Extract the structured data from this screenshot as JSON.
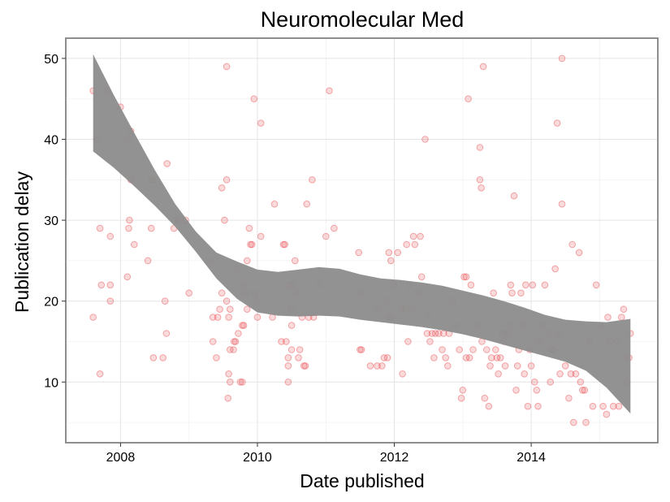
{
  "chart_data": {
    "type": "scatter",
    "title": "Neuromolecular Med",
    "xlabel": "Date published",
    "ylabel": "Publication delay",
    "xlim": [
      2007.2,
      2015.85
    ],
    "ylim": [
      2.5,
      52.5
    ],
    "x_ticks": [
      2008,
      2010,
      2012,
      2014
    ],
    "x_tick_labels": [
      "2008",
      "2010",
      "2012",
      "2014"
    ],
    "y_ticks": [
      10,
      20,
      30,
      40,
      50
    ],
    "y_tick_labels": [
      "10",
      "20",
      "30",
      "40",
      "50"
    ],
    "grid": true,
    "legend": "none",
    "point_color": "#e8474c",
    "band_color": "#8c8c8c",
    "points": [
      [
        2007.6,
        46
      ],
      [
        2007.8,
        46
      ],
      [
        2007.65,
        40
      ],
      [
        2008.0,
        44
      ],
      [
        2008.1,
        40
      ],
      [
        2008.15,
        41
      ],
      [
        2008.15,
        35
      ],
      [
        2008.45,
        35
      ],
      [
        2008.47,
        35
      ],
      [
        2007.6,
        18
      ],
      [
        2007.7,
        11
      ],
      [
        2007.72,
        22
      ],
      [
        2007.85,
        22
      ],
      [
        2007.85,
        20
      ],
      [
        2007.7,
        29
      ],
      [
        2007.85,
        28
      ],
      [
        2008.1,
        23
      ],
      [
        2008.12,
        29
      ],
      [
        2008.13,
        30
      ],
      [
        2008.2,
        27
      ],
      [
        2008.4,
        25
      ],
      [
        2008.45,
        29
      ],
      [
        2008.48,
        13
      ],
      [
        2008.62,
        13
      ],
      [
        2008.65,
        20
      ],
      [
        2008.67,
        16
      ],
      [
        2008.68,
        37
      ],
      [
        2008.78,
        29
      ],
      [
        2008.8,
        30
      ],
      [
        2008.85,
        30
      ],
      [
        2008.95,
        30
      ],
      [
        2009.0,
        21
      ],
      [
        2009.3,
        25
      ],
      [
        2009.35,
        15
      ],
      [
        2009.35,
        18
      ],
      [
        2009.4,
        13
      ],
      [
        2009.42,
        18
      ],
      [
        2009.45,
        19
      ],
      [
        2009.48,
        21
      ],
      [
        2009.48,
        34
      ],
      [
        2009.55,
        49
      ],
      [
        2009.55,
        35
      ],
      [
        2009.52,
        30
      ],
      [
        2009.55,
        20
      ],
      [
        2009.58,
        18
      ],
      [
        2009.6,
        19
      ],
      [
        2009.6,
        14
      ],
      [
        2009.58,
        11
      ],
      [
        2009.6,
        10
      ],
      [
        2009.57,
        8
      ],
      [
        2009.65,
        14
      ],
      [
        2009.66,
        15
      ],
      [
        2009.68,
        15
      ],
      [
        2009.7,
        24
      ],
      [
        2009.72,
        16
      ],
      [
        2009.75,
        10
      ],
      [
        2009.78,
        10
      ],
      [
        2009.78,
        17
      ],
      [
        2009.8,
        17
      ],
      [
        2009.8,
        22
      ],
      [
        2009.82,
        21
      ],
      [
        2009.85,
        19
      ],
      [
        2009.85,
        25
      ],
      [
        2009.88,
        29
      ],
      [
        2009.9,
        27
      ],
      [
        2009.92,
        27
      ],
      [
        2009.95,
        21
      ],
      [
        2009.95,
        45
      ],
      [
        2009.98,
        20
      ],
      [
        2010.0,
        18
      ],
      [
        2010.05,
        28
      ],
      [
        2010.05,
        42
      ],
      [
        2010.22,
        18
      ],
      [
        2010.25,
        32
      ],
      [
        2010.35,
        15
      ],
      [
        2010.38,
        27
      ],
      [
        2010.4,
        27
      ],
      [
        2010.42,
        15
      ],
      [
        2010.45,
        22
      ],
      [
        2010.45,
        13
      ],
      [
        2010.45,
        12
      ],
      [
        2010.45,
        10
      ],
      [
        2010.5,
        14
      ],
      [
        2010.5,
        17
      ],
      [
        2010.5,
        19
      ],
      [
        2010.52,
        22
      ],
      [
        2010.55,
        25
      ],
      [
        2010.57,
        21
      ],
      [
        2010.6,
        13
      ],
      [
        2010.62,
        14
      ],
      [
        2010.65,
        18
      ],
      [
        2010.68,
        12
      ],
      [
        2010.7,
        12
      ],
      [
        2010.72,
        32
      ],
      [
        2010.75,
        18
      ],
      [
        2010.8,
        35
      ],
      [
        2010.82,
        18
      ],
      [
        2010.9,
        22
      ],
      [
        2011.0,
        28
      ],
      [
        2011.05,
        46
      ],
      [
        2011.12,
        29
      ],
      [
        2011.48,
        26
      ],
      [
        2011.5,
        21
      ],
      [
        2011.5,
        14
      ],
      [
        2011.52,
        14
      ],
      [
        2011.65,
        12
      ],
      [
        2011.75,
        19
      ],
      [
        2011.75,
        12
      ],
      [
        2011.82,
        12
      ],
      [
        2011.85,
        13
      ],
      [
        2011.88,
        20
      ],
      [
        2011.9,
        13
      ],
      [
        2011.92,
        18
      ],
      [
        2011.92,
        26
      ],
      [
        2011.95,
        18
      ],
      [
        2011.95,
        25
      ],
      [
        2012.0,
        22
      ],
      [
        2012.05,
        26
      ],
      [
        2012.1,
        19
      ],
      [
        2012.12,
        11
      ],
      [
        2012.15,
        19
      ],
      [
        2012.18,
        27
      ],
      [
        2012.2,
        15
      ],
      [
        2012.22,
        22
      ],
      [
        2012.25,
        19
      ],
      [
        2012.28,
        28
      ],
      [
        2012.3,
        27
      ],
      [
        2012.35,
        21
      ],
      [
        2012.38,
        28
      ],
      [
        2012.4,
        23
      ],
      [
        2012.45,
        40
      ],
      [
        2012.48,
        16
      ],
      [
        2012.5,
        18
      ],
      [
        2012.52,
        15
      ],
      [
        2012.55,
        16
      ],
      [
        2012.58,
        13
      ],
      [
        2012.6,
        16
      ],
      [
        2012.65,
        16
      ],
      [
        2012.7,
        14
      ],
      [
        2012.72,
        16
      ],
      [
        2012.75,
        13
      ],
      [
        2012.78,
        12
      ],
      [
        2012.8,
        16
      ],
      [
        2012.85,
        20
      ],
      [
        2012.9,
        17
      ],
      [
        2012.95,
        14
      ],
      [
        2012.98,
        8
      ],
      [
        2013.0,
        9
      ],
      [
        2013.02,
        23
      ],
      [
        2013.05,
        23
      ],
      [
        2013.05,
        13
      ],
      [
        2013.08,
        45
      ],
      [
        2013.1,
        13
      ],
      [
        2013.12,
        22
      ],
      [
        2013.15,
        14
      ],
      [
        2013.2,
        17
      ],
      [
        2013.25,
        35
      ],
      [
        2013.25,
        39
      ],
      [
        2013.27,
        34
      ],
      [
        2013.28,
        15
      ],
      [
        2013.3,
        49
      ],
      [
        2013.32,
        8
      ],
      [
        2013.35,
        14
      ],
      [
        2013.38,
        7
      ],
      [
        2013.4,
        12
      ],
      [
        2013.42,
        13
      ],
      [
        2013.45,
        21
      ],
      [
        2013.48,
        14
      ],
      [
        2013.5,
        13
      ],
      [
        2013.52,
        11
      ],
      [
        2013.55,
        13
      ],
      [
        2013.58,
        16
      ],
      [
        2013.6,
        15
      ],
      [
        2013.62,
        12
      ],
      [
        2013.65,
        16
      ],
      [
        2013.68,
        17
      ],
      [
        2013.7,
        22
      ],
      [
        2013.72,
        21
      ],
      [
        2013.75,
        33
      ],
      [
        2013.78,
        9
      ],
      [
        2013.8,
        12
      ],
      [
        2013.82,
        14
      ],
      [
        2013.85,
        21
      ],
      [
        2013.88,
        17
      ],
      [
        2013.9,
        11
      ],
      [
        2013.92,
        22
      ],
      [
        2013.95,
        7
      ],
      [
        2013.98,
        14
      ],
      [
        2014.0,
        12
      ],
      [
        2014.02,
        22
      ],
      [
        2014.05,
        10
      ],
      [
        2014.08,
        9
      ],
      [
        2014.1,
        7
      ],
      [
        2014.12,
        15
      ],
      [
        2014.15,
        17
      ],
      [
        2014.2,
        22
      ],
      [
        2014.25,
        16
      ],
      [
        2014.28,
        10
      ],
      [
        2014.3,
        14
      ],
      [
        2014.32,
        14
      ],
      [
        2014.35,
        24
      ],
      [
        2014.38,
        42
      ],
      [
        2014.4,
        16
      ],
      [
        2014.42,
        11
      ],
      [
        2014.45,
        50
      ],
      [
        2014.45,
        32
      ],
      [
        2014.5,
        12
      ],
      [
        2014.55,
        8
      ],
      [
        2014.58,
        11
      ],
      [
        2014.6,
        27
      ],
      [
        2014.62,
        5
      ],
      [
        2014.65,
        11
      ],
      [
        2014.7,
        26
      ],
      [
        2014.72,
        10
      ],
      [
        2014.75,
        9
      ],
      [
        2014.78,
        9
      ],
      [
        2014.8,
        5
      ],
      [
        2014.85,
        15
      ],
      [
        2014.9,
        7
      ],
      [
        2014.95,
        22
      ],
      [
        2015.0,
        17
      ],
      [
        2015.05,
        7
      ],
      [
        2015.1,
        6
      ],
      [
        2015.12,
        18
      ],
      [
        2015.15,
        15
      ],
      [
        2015.2,
        7
      ],
      [
        2015.25,
        15
      ],
      [
        2015.28,
        7
      ],
      [
        2015.32,
        18
      ],
      [
        2015.35,
        19
      ],
      [
        2015.38,
        13
      ],
      [
        2015.4,
        10
      ],
      [
        2015.43,
        13
      ],
      [
        2015.45,
        16
      ]
    ],
    "band_upper": [
      [
        2007.6,
        50.5
      ],
      [
        2007.9,
        45.5
      ],
      [
        2008.2,
        40.8
      ],
      [
        2008.5,
        36.2
      ],
      [
        2008.8,
        32.0
      ],
      [
        2009.1,
        28.6
      ],
      [
        2009.4,
        26.0
      ],
      [
        2009.7,
        24.9
      ],
      [
        2010.0,
        23.9
      ],
      [
        2010.3,
        23.6
      ],
      [
        2010.6,
        23.9
      ],
      [
        2010.9,
        24.2
      ],
      [
        2011.2,
        24.0
      ],
      [
        2011.5,
        23.3
      ],
      [
        2011.8,
        22.8
      ],
      [
        2012.1,
        22.6
      ],
      [
        2012.4,
        22.3
      ],
      [
        2012.7,
        21.9
      ],
      [
        2013.0,
        21.3
      ],
      [
        2013.3,
        20.7
      ],
      [
        2013.6,
        20.0
      ],
      [
        2013.9,
        19.2
      ],
      [
        2014.2,
        18.3
      ],
      [
        2014.5,
        17.7
      ],
      [
        2014.8,
        17.5
      ],
      [
        2015.1,
        17.4
      ],
      [
        2015.45,
        17.8
      ]
    ],
    "band_lower": [
      [
        2007.6,
        38.5
      ],
      [
        2007.9,
        36.5
      ],
      [
        2008.2,
        34.2
      ],
      [
        2008.5,
        31.8
      ],
      [
        2008.8,
        29.2
      ],
      [
        2009.1,
        26.1
      ],
      [
        2009.4,
        22.8
      ],
      [
        2009.7,
        20.3
      ],
      [
        2010.0,
        18.6
      ],
      [
        2010.3,
        18.2
      ],
      [
        2010.6,
        18.1
      ],
      [
        2010.9,
        18.2
      ],
      [
        2011.2,
        18.1
      ],
      [
        2011.5,
        17.7
      ],
      [
        2011.8,
        17.4
      ],
      [
        2012.1,
        17.1
      ],
      [
        2012.4,
        16.8
      ],
      [
        2012.7,
        16.4
      ],
      [
        2013.0,
        15.9
      ],
      [
        2013.3,
        15.3
      ],
      [
        2013.6,
        14.6
      ],
      [
        2013.9,
        13.9
      ],
      [
        2014.2,
        13.2
      ],
      [
        2014.5,
        12.5
      ],
      [
        2014.8,
        11.4
      ],
      [
        2015.1,
        9.3
      ],
      [
        2015.45,
        6.1
      ]
    ]
  }
}
